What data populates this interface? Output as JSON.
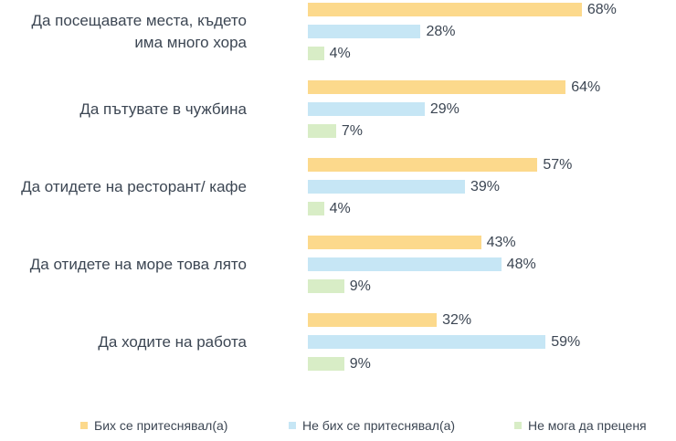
{
  "chart_data": {
    "type": "bar",
    "orientation": "horizontal",
    "categories": [
      "Да посещавате места, където има много хора",
      "Да пътувате в чужбина",
      "Да отидете на ресторант/ кафе",
      "Да отидете на море това лято",
      "Да ходите на работа"
    ],
    "series": [
      {
        "name": "Бих се притеснявал(а)",
        "color": "#fcd98c",
        "values": [
          68,
          64,
          57,
          43,
          32
        ],
        "value_labels": [
          "68%",
          "64%",
          "57%",
          "43%",
          "32%"
        ]
      },
      {
        "name": "Не бих се притеснявал(а)",
        "color": "#c6e6f5",
        "values": [
          28,
          29,
          39,
          48,
          59
        ],
        "value_labels": [
          "28%",
          "29%",
          "39%",
          "48%",
          "59%"
        ]
      },
      {
        "name": "Не мога да преценя",
        "color": "#d8edc6",
        "values": [
          4,
          7,
          4,
          9,
          9
        ],
        "value_labels": [
          "4%",
          "7%",
          "4%",
          "9%",
          "9%"
        ]
      }
    ],
    "legend": "bottom"
  }
}
